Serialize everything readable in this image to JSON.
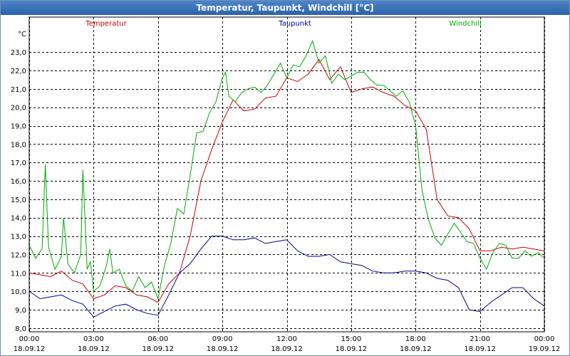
{
  "window": {
    "title": "Temperatur, Taupunkt, Windchill [°C]"
  },
  "chart_data": {
    "type": "line",
    "title": "Temperatur, Taupunkt, Windchill [°C]",
    "ylabel": "°C",
    "ylim": [
      7.8,
      24.9
    ],
    "yticks": [
      8.0,
      9.0,
      10.0,
      11.0,
      12.0,
      13.0,
      14.0,
      15.0,
      16.0,
      17.0,
      18.0,
      19.0,
      20.0,
      21.0,
      22.0,
      23.0
    ],
    "ytick_labels": [
      "8,0",
      "9,0",
      "10,0",
      "11,0",
      "12,0",
      "13,0",
      "14,0",
      "15,0",
      "16,0",
      "17,0",
      "18,0",
      "19,0",
      "20,0",
      "21,0",
      "22,0",
      "23,0"
    ],
    "xlim": [
      0,
      24
    ],
    "xticks": [
      0,
      3,
      6,
      9,
      12,
      15,
      18,
      21,
      24
    ],
    "xtick_labels": [
      [
        "00:00",
        "18.09.12"
      ],
      [
        "03:00",
        "18.09.12"
      ],
      [
        "06:00",
        "18.09.12"
      ],
      [
        "09:00",
        "18.09.12"
      ],
      [
        "12:00",
        "18.09.12"
      ],
      [
        "15:00",
        "18.09.12"
      ],
      [
        "18:00",
        "18.09.12"
      ],
      [
        "21:00",
        "18.09.12"
      ],
      [
        "00:00",
        "19.09.12"
      ]
    ],
    "grid": true,
    "legend_position": "top",
    "series": [
      {
        "name": "Temperatur",
        "color": "#cc0000",
        "x": [
          0,
          0.5,
          1,
          1.5,
          2,
          2.5,
          3,
          3.5,
          4,
          4.5,
          5,
          5.5,
          6,
          6.5,
          7,
          7.5,
          8,
          8.5,
          9,
          9.5,
          10,
          10.5,
          11,
          11.5,
          12,
          12.5,
          13,
          13.5,
          14,
          14.5,
          15,
          15.5,
          16,
          16.5,
          17,
          17.5,
          18,
          18.5,
          19,
          19.5,
          20,
          20.5,
          21,
          21.5,
          22,
          22.5,
          23,
          23.5,
          24
        ],
        "y": [
          11.0,
          10.9,
          10.8,
          11.1,
          10.6,
          10.4,
          9.6,
          9.8,
          10.3,
          10.2,
          9.8,
          9.7,
          9.4,
          10.4,
          11.0,
          13.0,
          16.0,
          17.7,
          19.2,
          20.4,
          19.8,
          19.9,
          20.5,
          20.6,
          21.6,
          21.4,
          21.8,
          22.6,
          21.5,
          22.2,
          20.8,
          21.0,
          21.1,
          20.8,
          20.6,
          20.1,
          19.8,
          18.8,
          15.0,
          14.1,
          14.0,
          13.4,
          12.2,
          12.2,
          12.4,
          12.3,
          12.4,
          12.3,
          12.2
        ]
      },
      {
        "name": "Taupunkt",
        "color": "#000099",
        "x": [
          0,
          0.5,
          1,
          1.5,
          2,
          2.5,
          3,
          3.5,
          4,
          4.5,
          5,
          5.5,
          6,
          6.5,
          7,
          7.5,
          8,
          8.5,
          9,
          9.5,
          10,
          10.5,
          11,
          11.5,
          12,
          12.5,
          13,
          13.5,
          14,
          14.5,
          15,
          15.5,
          16,
          16.5,
          17,
          17.5,
          18,
          18.5,
          19,
          19.5,
          20,
          20.5,
          21,
          21.5,
          22,
          22.5,
          23,
          23.5,
          24
        ],
        "y": [
          10.0,
          9.6,
          9.7,
          9.8,
          9.5,
          9.3,
          8.6,
          8.9,
          9.2,
          9.3,
          9.0,
          8.8,
          8.7,
          9.8,
          11.0,
          11.5,
          12.3,
          13.0,
          13.0,
          12.8,
          12.8,
          12.9,
          12.6,
          12.7,
          12.8,
          12.2,
          11.9,
          11.9,
          12.0,
          11.6,
          11.5,
          11.4,
          11.1,
          11.0,
          11.0,
          11.1,
          11.1,
          11.0,
          10.7,
          10.6,
          10.2,
          9.0,
          8.9,
          9.4,
          9.8,
          10.2,
          10.2,
          9.6,
          9.2
        ]
      },
      {
        "name": "Windchill",
        "color": "#00aa00",
        "x": [
          0,
          0.3,
          0.6,
          0.75,
          0.9,
          1.2,
          1.5,
          1.6,
          1.8,
          2.1,
          2.4,
          2.5,
          2.7,
          2.85,
          3,
          3.3,
          3.6,
          3.75,
          3.9,
          4.2,
          4.5,
          4.8,
          5.1,
          5.4,
          5.7,
          6,
          6.3,
          6.6,
          6.9,
          7.2,
          7.5,
          7.8,
          8.1,
          8.4,
          8.7,
          9,
          9.15,
          9.3,
          9.6,
          9.9,
          10.2,
          10.5,
          10.8,
          11.1,
          11.4,
          11.7,
          12,
          12.3,
          12.6,
          12.9,
          13.2,
          13.5,
          13.8,
          14.1,
          14.4,
          14.7,
          15,
          15.3,
          15.6,
          15.9,
          16.2,
          16.5,
          16.8,
          17.1,
          17.4,
          17.7,
          18,
          18.3,
          18.6,
          18.9,
          19.2,
          19.5,
          19.8,
          20.1,
          20.4,
          20.7,
          21,
          21.3,
          21.6,
          21.9,
          22.2,
          22.5,
          22.8,
          23.1,
          23.4,
          23.7,
          24
        ],
        "y": [
          12.5,
          11.8,
          12.3,
          16.9,
          12.4,
          11.2,
          11.9,
          14.0,
          11.5,
          11.0,
          12.0,
          16.6,
          11.2,
          11.6,
          10.0,
          10.3,
          11.4,
          12.3,
          11.0,
          11.2,
          10.3,
          10.0,
          10.8,
          10.2,
          10.5,
          9.6,
          11.4,
          12.6,
          14.5,
          14.2,
          16.3,
          18.6,
          18.7,
          19.7,
          20.3,
          21.6,
          21.9,
          20.6,
          20.3,
          20.8,
          21.0,
          21.1,
          20.8,
          21.2,
          21.8,
          22.4,
          21.6,
          22.3,
          22.2,
          22.8,
          23.6,
          22.4,
          22.8,
          21.3,
          21.8,
          21.5,
          21.7,
          21.9,
          21.9,
          21.5,
          21.2,
          21.2,
          20.9,
          20.6,
          20.9,
          20.3,
          19.0,
          15.5,
          13.9,
          12.9,
          12.5,
          13.1,
          13.7,
          13.2,
          12.7,
          12.6,
          11.8,
          11.2,
          12.1,
          12.6,
          12.5,
          11.8,
          11.8,
          12.2,
          11.9,
          12.1,
          11.8
        ]
      }
    ]
  }
}
